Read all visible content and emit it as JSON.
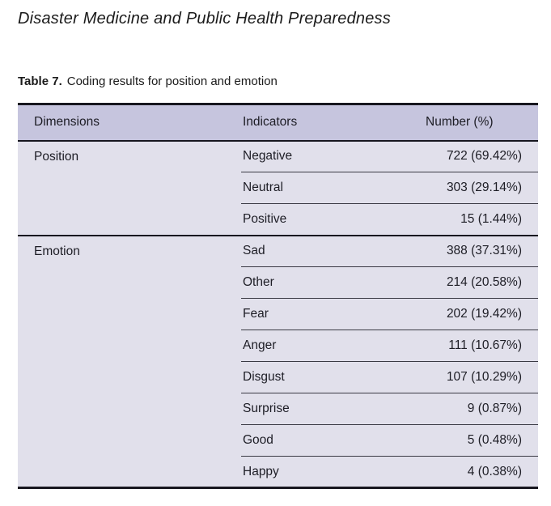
{
  "page": {
    "journal_title": "Disaster Medicine and Public Health Preparedness"
  },
  "caption": {
    "label": "Table 7.",
    "text": "Coding results for position and emotion"
  },
  "colors": {
    "header_band": "#c6c5de",
    "body_band": "#e1e0eb",
    "rule_dark": "#17171f",
    "rule_light": "#3a3a44"
  },
  "table": {
    "headers": [
      "Dimensions",
      "Indicators",
      "Number (%)"
    ],
    "groups": [
      {
        "dimension": "Position",
        "rows": [
          {
            "indicator": "Negative",
            "number": "722 (69.42%)"
          },
          {
            "indicator": "Neutral",
            "number": "303 (29.14%)"
          },
          {
            "indicator": "Positive",
            "number": "15 (1.44%)"
          }
        ]
      },
      {
        "dimension": "Emotion",
        "rows": [
          {
            "indicator": "Sad",
            "number": "388 (37.31%)"
          },
          {
            "indicator": "Other",
            "number": "214 (20.58%)"
          },
          {
            "indicator": "Fear",
            "number": "202 (19.42%)"
          },
          {
            "indicator": "Anger",
            "number": "111 (10.67%)"
          },
          {
            "indicator": "Disgust",
            "number": "107 (10.29%)"
          },
          {
            "indicator": "Surprise",
            "number": "9 (0.87%)"
          },
          {
            "indicator": "Good",
            "number": "5 (0.48%)"
          },
          {
            "indicator": "Happy",
            "number": "4 (0.38%)"
          }
        ]
      }
    ]
  }
}
